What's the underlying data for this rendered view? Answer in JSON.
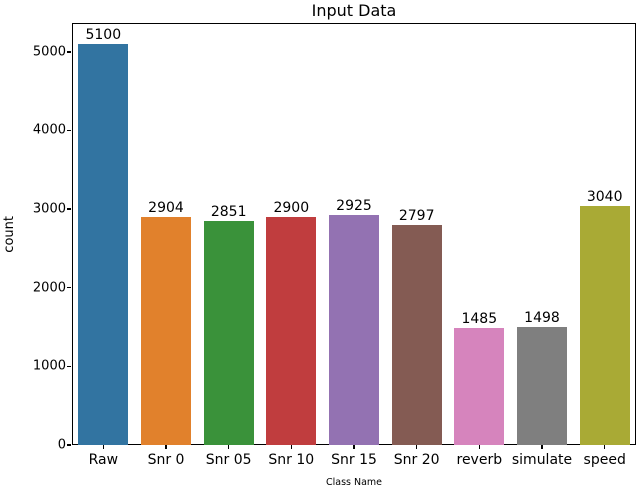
{
  "figure": {
    "title": "Input Data"
  },
  "chart_data": {
    "type": "bar",
    "title": "Input Data",
    "xlabel": "Class Name",
    "ylabel": "count",
    "categories": [
      "Raw",
      "Snr 0",
      "Snr 05",
      "Snr 10",
      "Snr 15",
      "Snr 20",
      "reverb",
      "simulate",
      "speed"
    ],
    "values": [
      5100,
      2904,
      2851,
      2900,
      2925,
      2797,
      1485,
      1498,
      3040
    ],
    "value_labels": [
      "5100",
      "2904",
      "2851",
      "2900",
      "2925",
      "2797",
      "1485",
      "1498",
      "3040"
    ],
    "bar_colors": [
      "#3274a1",
      "#e1812c",
      "#3a923a",
      "#c03d3e",
      "#9372b2",
      "#845b53",
      "#d684bd",
      "#7f7f7f",
      "#a9aa35"
    ],
    "yticks": [
      0,
      1000,
      2000,
      3000,
      4000,
      5000
    ],
    "ytick_labels": [
      "0",
      "1000",
      "2000",
      "3000",
      "4000",
      "5000"
    ],
    "ylim": [
      0,
      5365
    ],
    "grid": false,
    "legend": "none",
    "background_color": "#ffffff",
    "spine_color": "#000000",
    "text_color": "#000000"
  }
}
